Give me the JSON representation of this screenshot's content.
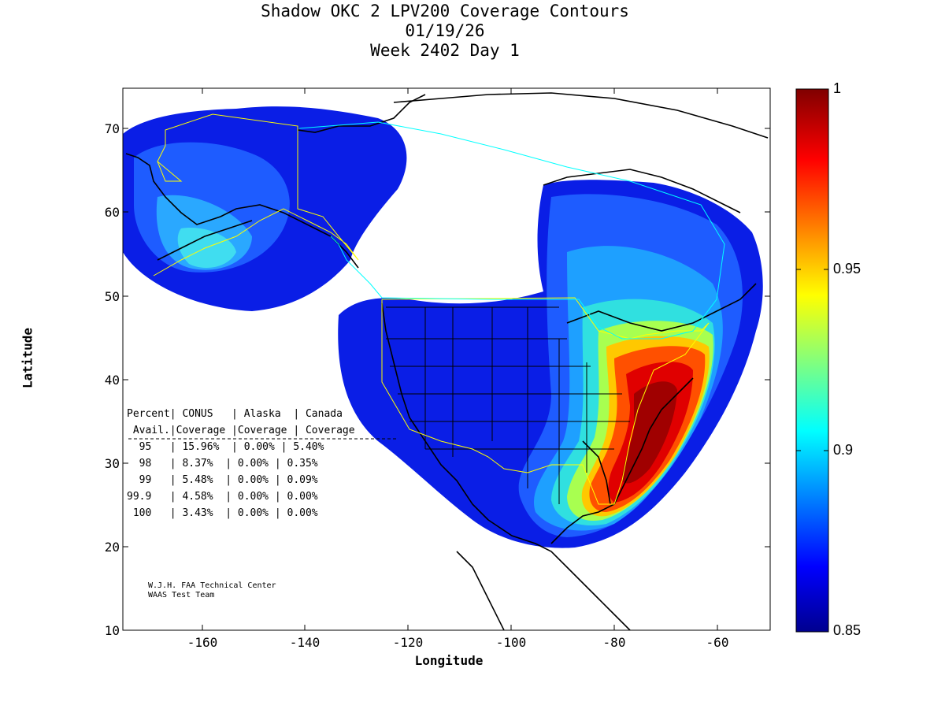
{
  "title": {
    "line1": "Shadow OKC 2 LPV200 Coverage Contours",
    "line2": "01/19/26",
    "line3": "Week 2402 Day 1"
  },
  "axes": {
    "xlabel": "Longitude",
    "ylabel": "Latitude",
    "xticks": [
      "-160",
      "-140",
      "-120",
      "-100",
      "-80",
      "-60"
    ],
    "yticks": [
      "70",
      "60",
      "50",
      "40",
      "30",
      "20",
      "10"
    ],
    "xlim": [
      -175,
      -50
    ],
    "ylim": [
      10,
      75
    ]
  },
  "colorbar": {
    "min": "0.85",
    "max": "1",
    "ticks": [
      "1",
      "0.95",
      "0.9",
      "0.85"
    ]
  },
  "stats_table": {
    "header1": "Percent| CONUS   | Alaska  | Canada",
    "header2": " Avail.|Coverage |Coverage | Coverage",
    "rows": [
      "  95   | 15.96%  | 0.00% | 5.40%",
      "  98   | 8.37%  | 0.00% | 0.35%",
      "  99   | 5.48%  | 0.00% | 0.09%",
      "99.9   | 4.58%  | 0.00% | 0.00%",
      " 100   | 3.43%  | 0.00% | 0.00%"
    ]
  },
  "credit": {
    "line1": "W.J.H. FAA Technical Center",
    "line2": "WAAS Test Team"
  },
  "colors": {
    "low": "#00008f",
    "mid": "#00ffff",
    "high": "#800000",
    "service_boundary_conus": "#ffff00",
    "service_boundary_canada": "#00ffff"
  }
}
